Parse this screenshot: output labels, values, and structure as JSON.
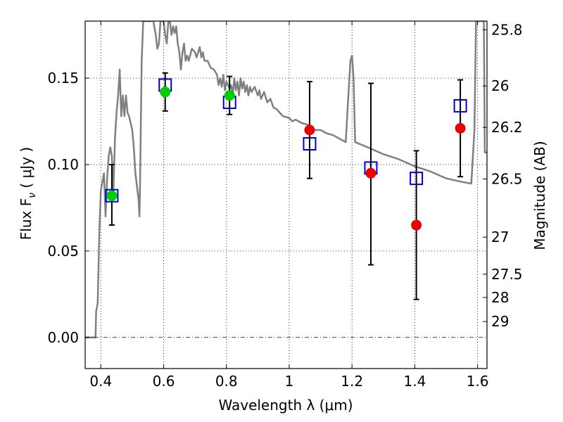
{
  "chart_data": {
    "type": "scatter",
    "xlabel": "Wavelength  λ (μm)",
    "ylabel_prefix": "Flux  F",
    "ylabel_sub": "ν",
    "ylabel_suffix": "  ( μJy )",
    "ylabel_right": "Magnitude (AB)",
    "xlim": [
      0.35,
      1.63
    ],
    "ylim": [
      -0.018,
      0.183
    ],
    "grid": true,
    "x_ticks": [
      {
        "value": 0.4,
        "label": "0.4"
      },
      {
        "value": 0.6,
        "label": "0.6"
      },
      {
        "value": 0.8,
        "label": "0.8"
      },
      {
        "value": 1.0,
        "label": "1"
      },
      {
        "value": 1.2,
        "label": "1.2"
      },
      {
        "value": 1.4,
        "label": "1.4"
      },
      {
        "value": 1.6,
        "label": "1.6"
      }
    ],
    "y_ticks": [
      {
        "value": 0.0,
        "label": "0.00"
      },
      {
        "value": 0.05,
        "label": "0.05"
      },
      {
        "value": 0.1,
        "label": "0.10"
      },
      {
        "value": 0.15,
        "label": "0.15"
      }
    ],
    "mag_ticks": [
      {
        "value": 0.178,
        "label": "25.8"
      },
      {
        "value": 0.1455,
        "label": "26"
      },
      {
        "value": 0.1215,
        "label": "26.2"
      },
      {
        "value": 0.0917,
        "label": "26.5"
      },
      {
        "value": 0.058,
        "label": "27"
      },
      {
        "value": 0.0366,
        "label": "27.5"
      },
      {
        "value": 0.0231,
        "label": "28"
      },
      {
        "value": 0.0092,
        "label": "29"
      }
    ],
    "series": [
      {
        "name": "model spectrum",
        "kind": "line",
        "color": "#808080",
        "points": [
          [
            0.35,
            0.0
          ],
          [
            0.38,
            0.0
          ],
          [
            0.383,
            0.0
          ],
          [
            0.385,
            0.015
          ],
          [
            0.39,
            0.02
          ],
          [
            0.395,
            0.06
          ],
          [
            0.4,
            0.085
          ],
          [
            0.41,
            0.095
          ],
          [
            0.415,
            0.07
          ],
          [
            0.42,
            0.092
          ],
          [
            0.425,
            0.105
          ],
          [
            0.43,
            0.11
          ],
          [
            0.435,
            0.105
          ],
          [
            0.44,
            0.085
          ],
          [
            0.445,
            0.115
          ],
          [
            0.45,
            0.13
          ],
          [
            0.455,
            0.14
          ],
          [
            0.46,
            0.155
          ],
          [
            0.465,
            0.128
          ],
          [
            0.47,
            0.14
          ],
          [
            0.475,
            0.128
          ],
          [
            0.48,
            0.14
          ],
          [
            0.485,
            0.13
          ],
          [
            0.49,
            0.128
          ],
          [
            0.5,
            0.12
          ],
          [
            0.505,
            0.11
          ],
          [
            0.51,
            0.095
          ],
          [
            0.52,
            0.08
          ],
          [
            0.523,
            0.07
          ],
          [
            0.525,
            0.09
          ],
          [
            0.53,
            0.16
          ],
          [
            0.535,
            0.183
          ],
          [
            0.56,
            0.183
          ],
          [
            0.565,
            0.186
          ],
          [
            0.57,
            0.18
          ],
          [
            0.575,
            0.175
          ],
          [
            0.58,
            0.167
          ],
          [
            0.585,
            0.17
          ],
          [
            0.59,
            0.183
          ],
          [
            0.6,
            0.183
          ],
          [
            0.605,
            0.175
          ],
          [
            0.61,
            0.17
          ],
          [
            0.615,
            0.183
          ],
          [
            0.62,
            0.183
          ],
          [
            0.625,
            0.175
          ],
          [
            0.63,
            0.18
          ],
          [
            0.635,
            0.176
          ],
          [
            0.64,
            0.18
          ],
          [
            0.645,
            0.17
          ],
          [
            0.65,
            0.165
          ],
          [
            0.655,
            0.155
          ],
          [
            0.66,
            0.165
          ],
          [
            0.665,
            0.17
          ],
          [
            0.67,
            0.16
          ],
          [
            0.675,
            0.163
          ],
          [
            0.68,
            0.16
          ],
          [
            0.69,
            0.167
          ],
          [
            0.7,
            0.165
          ],
          [
            0.705,
            0.162
          ],
          [
            0.71,
            0.165
          ],
          [
            0.715,
            0.168
          ],
          [
            0.72,
            0.162
          ],
          [
            0.725,
            0.165
          ],
          [
            0.73,
            0.16
          ],
          [
            0.74,
            0.16
          ],
          [
            0.75,
            0.156
          ],
          [
            0.76,
            0.155
          ],
          [
            0.77,
            0.152
          ],
          [
            0.775,
            0.146
          ],
          [
            0.78,
            0.15
          ],
          [
            0.785,
            0.145
          ],
          [
            0.79,
            0.152
          ],
          [
            0.795,
            0.143
          ],
          [
            0.8,
            0.148
          ],
          [
            0.81,
            0.144
          ],
          [
            0.815,
            0.146
          ],
          [
            0.82,
            0.14
          ],
          [
            0.825,
            0.15
          ],
          [
            0.83,
            0.143
          ],
          [
            0.835,
            0.148
          ],
          [
            0.84,
            0.14
          ],
          [
            0.845,
            0.15
          ],
          [
            0.85,
            0.144
          ],
          [
            0.855,
            0.148
          ],
          [
            0.86,
            0.142
          ],
          [
            0.865,
            0.146
          ],
          [
            0.87,
            0.14
          ],
          [
            0.875,
            0.145
          ],
          [
            0.88,
            0.142
          ],
          [
            0.89,
            0.145
          ],
          [
            0.9,
            0.14
          ],
          [
            0.905,
            0.143
          ],
          [
            0.91,
            0.138
          ],
          [
            0.92,
            0.142
          ],
          [
            0.93,
            0.136
          ],
          [
            0.94,
            0.138
          ],
          [
            0.95,
            0.133
          ],
          [
            0.96,
            0.132
          ],
          [
            0.97,
            0.13
          ],
          [
            0.98,
            0.128
          ],
          [
            1.0,
            0.127
          ],
          [
            1.01,
            0.125
          ],
          [
            1.02,
            0.126
          ],
          [
            1.04,
            0.124
          ],
          [
            1.06,
            0.123
          ],
          [
            1.08,
            0.12
          ],
          [
            1.1,
            0.12
          ],
          [
            1.12,
            0.118
          ],
          [
            1.14,
            0.117
          ],
          [
            1.16,
            0.115
          ],
          [
            1.18,
            0.113
          ],
          [
            1.19,
            0.145
          ],
          [
            1.195,
            0.16
          ],
          [
            1.2,
            0.163
          ],
          [
            1.205,
            0.15
          ],
          [
            1.21,
            0.113
          ],
          [
            1.25,
            0.11
          ],
          [
            1.3,
            0.106
          ],
          [
            1.35,
            0.103
          ],
          [
            1.4,
            0.099
          ],
          [
            1.45,
            0.096
          ],
          [
            1.5,
            0.092
          ],
          [
            1.55,
            0.09
          ],
          [
            1.58,
            0.089
          ],
          [
            1.59,
            0.12
          ],
          [
            1.595,
            0.183
          ],
          [
            1.62,
            0.183
          ],
          [
            1.623,
            0.107
          ],
          [
            1.63,
            0.107
          ]
        ]
      },
      {
        "name": "model band fluxes",
        "kind": "open-square",
        "color": "#0000cc",
        "points": [
          [
            0.435,
            0.082
          ],
          [
            0.605,
            0.146
          ],
          [
            0.81,
            0.136
          ],
          [
            1.065,
            0.112
          ],
          [
            1.26,
            0.098
          ],
          [
            1.405,
            0.092
          ],
          [
            1.545,
            0.134
          ]
        ]
      },
      {
        "name": "detections",
        "kind": "filled-circle",
        "color": "#00cc00",
        "points": [
          [
            0.435,
            0.082
          ],
          [
            0.605,
            0.142
          ],
          [
            0.81,
            0.14
          ]
        ]
      },
      {
        "name": "non-detections",
        "kind": "filled-circle",
        "color": "#ee0000",
        "points": [
          [
            1.065,
            0.12
          ],
          [
            1.26,
            0.095
          ],
          [
            1.405,
            0.065
          ],
          [
            1.545,
            0.121
          ]
        ]
      }
    ],
    "error_bars": [
      {
        "x": 0.435,
        "low": 0.065,
        "high": 0.1
      },
      {
        "x": 0.605,
        "low": 0.131,
        "high": 0.153
      },
      {
        "x": 0.81,
        "low": 0.129,
        "high": 0.151
      },
      {
        "x": 1.065,
        "low": 0.092,
        "high": 0.148
      },
      {
        "x": 1.26,
        "low": 0.042,
        "high": 0.147
      },
      {
        "x": 1.405,
        "low": 0.022,
        "high": 0.108
      },
      {
        "x": 1.545,
        "low": 0.093,
        "high": 0.149
      }
    ]
  }
}
